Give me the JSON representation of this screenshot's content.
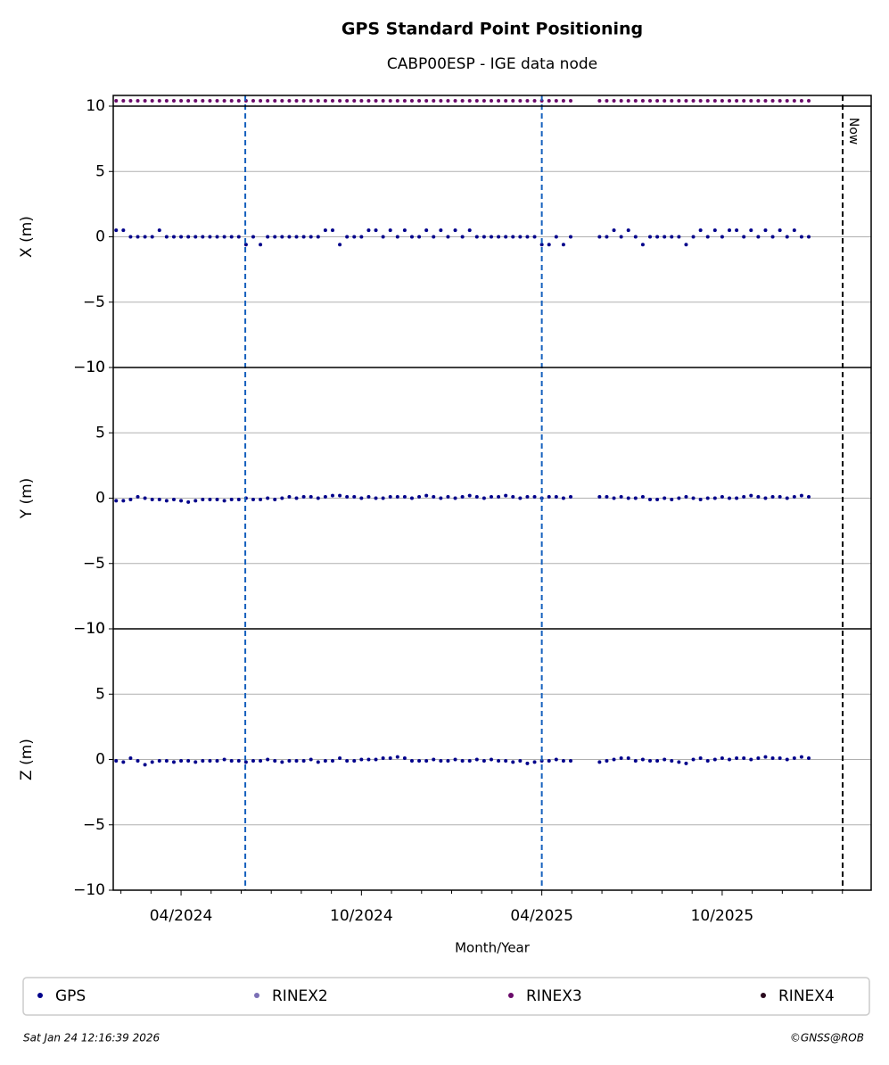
{
  "chart_data": {
    "type": "scatter",
    "title": "GPS Standard Point Positioning",
    "subtitle": "CABP00ESP - IGE data node",
    "x_label": "Month/Year",
    "xlim": [
      2024.062,
      2026.163
    ],
    "xticks": [
      {
        "value": 2024.25,
        "label": "04/2024"
      },
      {
        "value": 2024.75,
        "label": "10/2024"
      },
      {
        "value": 2025.25,
        "label": "04/2025"
      },
      {
        "value": 2025.75,
        "label": "10/2025"
      }
    ],
    "xminor_ticks": [
      2024.0833,
      2024.1667,
      2024.3333,
      2024.4167,
      2024.5,
      2024.5833,
      2024.6667,
      2024.8333,
      2024.9167,
      2025,
      2025.0833,
      2025.1667,
      2025.3333,
      2025.4167,
      2025.5,
      2025.5833,
      2025.6667,
      2025.8333,
      2025.9167,
      2026,
      2026.0833
    ],
    "events": [
      2024.428,
      2025.25
    ],
    "now": {
      "value": 2026.084,
      "label": "Now"
    },
    "grid": true,
    "x": [
      2024.07,
      2024.09,
      2024.11,
      2024.13,
      2024.15,
      2024.17,
      2024.19,
      2024.21,
      2024.23,
      2024.25,
      2024.27,
      2024.29,
      2024.31,
      2024.33,
      2024.35,
      2024.37,
      2024.39,
      2024.41,
      2024.43,
      2024.45,
      2024.47,
      2024.49,
      2024.51,
      2024.53,
      2024.55,
      2024.57,
      2024.59,
      2024.61,
      2024.63,
      2024.65,
      2024.67,
      2024.69,
      2024.71,
      2024.73,
      2024.75,
      2024.77,
      2024.79,
      2024.81,
      2024.83,
      2024.85,
      2024.87,
      2024.89,
      2024.91,
      2024.93,
      2024.95,
      2024.97,
      2024.99,
      2025.01,
      2025.03,
      2025.05,
      2025.07,
      2025.09,
      2025.11,
      2025.13,
      2025.15,
      2025.17,
      2025.19,
      2025.21,
      2025.23,
      2025.25,
      2025.27,
      2025.29,
      2025.31,
      2025.33,
      2025.41,
      2025.43,
      2025.45,
      2025.47,
      2025.49,
      2025.51,
      2025.53,
      2025.55,
      2025.57,
      2025.59,
      2025.61,
      2025.63,
      2025.65,
      2025.67,
      2025.69,
      2025.71,
      2025.73,
      2025.75,
      2025.77,
      2025.79,
      2025.81,
      2025.83,
      2025.85,
      2025.87,
      2025.89,
      2025.91,
      2025.93,
      2025.95,
      2025.97,
      2025.99
    ],
    "panels": [
      {
        "ylabel": "X (m)",
        "ylim": [
          -10,
          10
        ],
        "yticks": [
          {
            "value": -10,
            "label": "−10"
          },
          {
            "value": -5,
            "label": "−5"
          },
          0,
          5,
          10
        ],
        "values": [
          0.5,
          0.5,
          0,
          0,
          0,
          0,
          0.5,
          0,
          0,
          0,
          0,
          0,
          0,
          0,
          0,
          0,
          0,
          0,
          -0.6,
          0,
          -0.6,
          0,
          0,
          0,
          0,
          0,
          0,
          0,
          0,
          0.5,
          0.5,
          -0.6,
          0,
          0,
          0,
          0.5,
          0.5,
          0,
          0.5,
          0,
          0.5,
          0,
          0,
          0.5,
          0,
          0.5,
          0,
          0.5,
          0,
          0.5,
          0,
          0,
          0,
          0,
          0,
          0,
          0,
          0,
          0,
          -0.6,
          -0.6,
          0,
          -0.6,
          0,
          0,
          0,
          0.5,
          0,
          0.5,
          0,
          -0.6,
          0,
          0,
          0,
          0,
          0,
          -0.6,
          0,
          0.5,
          0,
          0.5,
          0,
          0.5,
          0.5,
          0,
          0.5,
          0,
          0.5,
          0,
          0.5,
          0,
          0.5,
          0,
          0
        ]
      },
      {
        "ylabel": "Y (m)",
        "ylim": [
          -10,
          10
        ],
        "yticks": [
          {
            "value": -10,
            "label": "−10"
          },
          {
            "value": -5,
            "label": "−5"
          },
          0,
          5,
          10
        ],
        "values": [
          -0.2,
          -0.2,
          -0.1,
          0.1,
          0,
          -0.1,
          -0.1,
          -0.2,
          -0.1,
          -0.2,
          -0.3,
          -0.2,
          -0.1,
          -0.1,
          -0.1,
          -0.2,
          -0.1,
          -0.1,
          0,
          -0.1,
          -0.1,
          0,
          -0.1,
          0,
          0.1,
          0,
          0.1,
          0.1,
          0,
          0.1,
          0.2,
          0.2,
          0.1,
          0.1,
          0,
          0.1,
          0,
          0,
          0.1,
          0.1,
          0.1,
          0,
          0.1,
          0.2,
          0.1,
          0,
          0.1,
          0,
          0.1,
          0.2,
          0.1,
          0,
          0.1,
          0.1,
          0.2,
          0.1,
          0,
          0.1,
          0.1,
          0,
          0.1,
          0.1,
          0,
          0.1,
          0.1,
          0.1,
          0,
          0.1,
          0,
          0,
          0.1,
          -0.1,
          -0.1,
          0,
          -0.1,
          0,
          0.1,
          0,
          -0.1,
          0,
          0,
          0.1,
          0,
          0,
          0.1,
          0.2,
          0.1,
          0,
          0.1,
          0.1,
          0,
          0.1,
          0.2,
          0.1
        ]
      },
      {
        "ylabel": "Z (m)",
        "ylim": [
          -10,
          10
        ],
        "yticks": [
          {
            "value": -10,
            "label": "−10"
          },
          {
            "value": -5,
            "label": "−5"
          },
          0,
          5,
          10
        ],
        "values": [
          -0.1,
          -0.2,
          0.1,
          -0.1,
          -0.4,
          -0.2,
          -0.1,
          -0.1,
          -0.2,
          -0.1,
          -0.1,
          -0.2,
          -0.1,
          -0.1,
          -0.1,
          0,
          -0.1,
          -0.1,
          -0.2,
          -0.1,
          -0.1,
          0,
          -0.1,
          -0.2,
          -0.1,
          -0.1,
          -0.1,
          0,
          -0.2,
          -0.1,
          -0.1,
          0.1,
          -0.1,
          -0.1,
          0,
          0,
          0,
          0.1,
          0.1,
          0.2,
          0.1,
          -0.1,
          -0.1,
          -0.1,
          0,
          -0.1,
          -0.1,
          0,
          -0.1,
          -0.1,
          0,
          -0.1,
          0,
          -0.1,
          -0.1,
          -0.2,
          -0.1,
          -0.3,
          -0.2,
          -0.1,
          -0.1,
          0,
          -0.1,
          -0.1,
          -0.2,
          -0.1,
          0,
          0.1,
          0.1,
          -0.1,
          0,
          -0.1,
          -0.1,
          0,
          -0.1,
          -0.2,
          -0.3,
          0,
          0.1,
          -0.1,
          0,
          0.1,
          0,
          0.1,
          0.1,
          0,
          0.1,
          0.2,
          0.1,
          0.1,
          0,
          0.1,
          0.2,
          0.1
        ]
      }
    ],
    "series": [
      {
        "name": "GPS",
        "color": "#00008b"
      },
      {
        "name": "RINEX2",
        "color": "#7b6fb5"
      },
      {
        "name": "RINEX3",
        "color": "#6a0a6a"
      },
      {
        "name": "RINEX4",
        "color": "#2a0a1e"
      }
    ],
    "footer_left": "Sat Jan 24 12:16:39 2026",
    "footer_right": "©GNSS@ROB"
  }
}
